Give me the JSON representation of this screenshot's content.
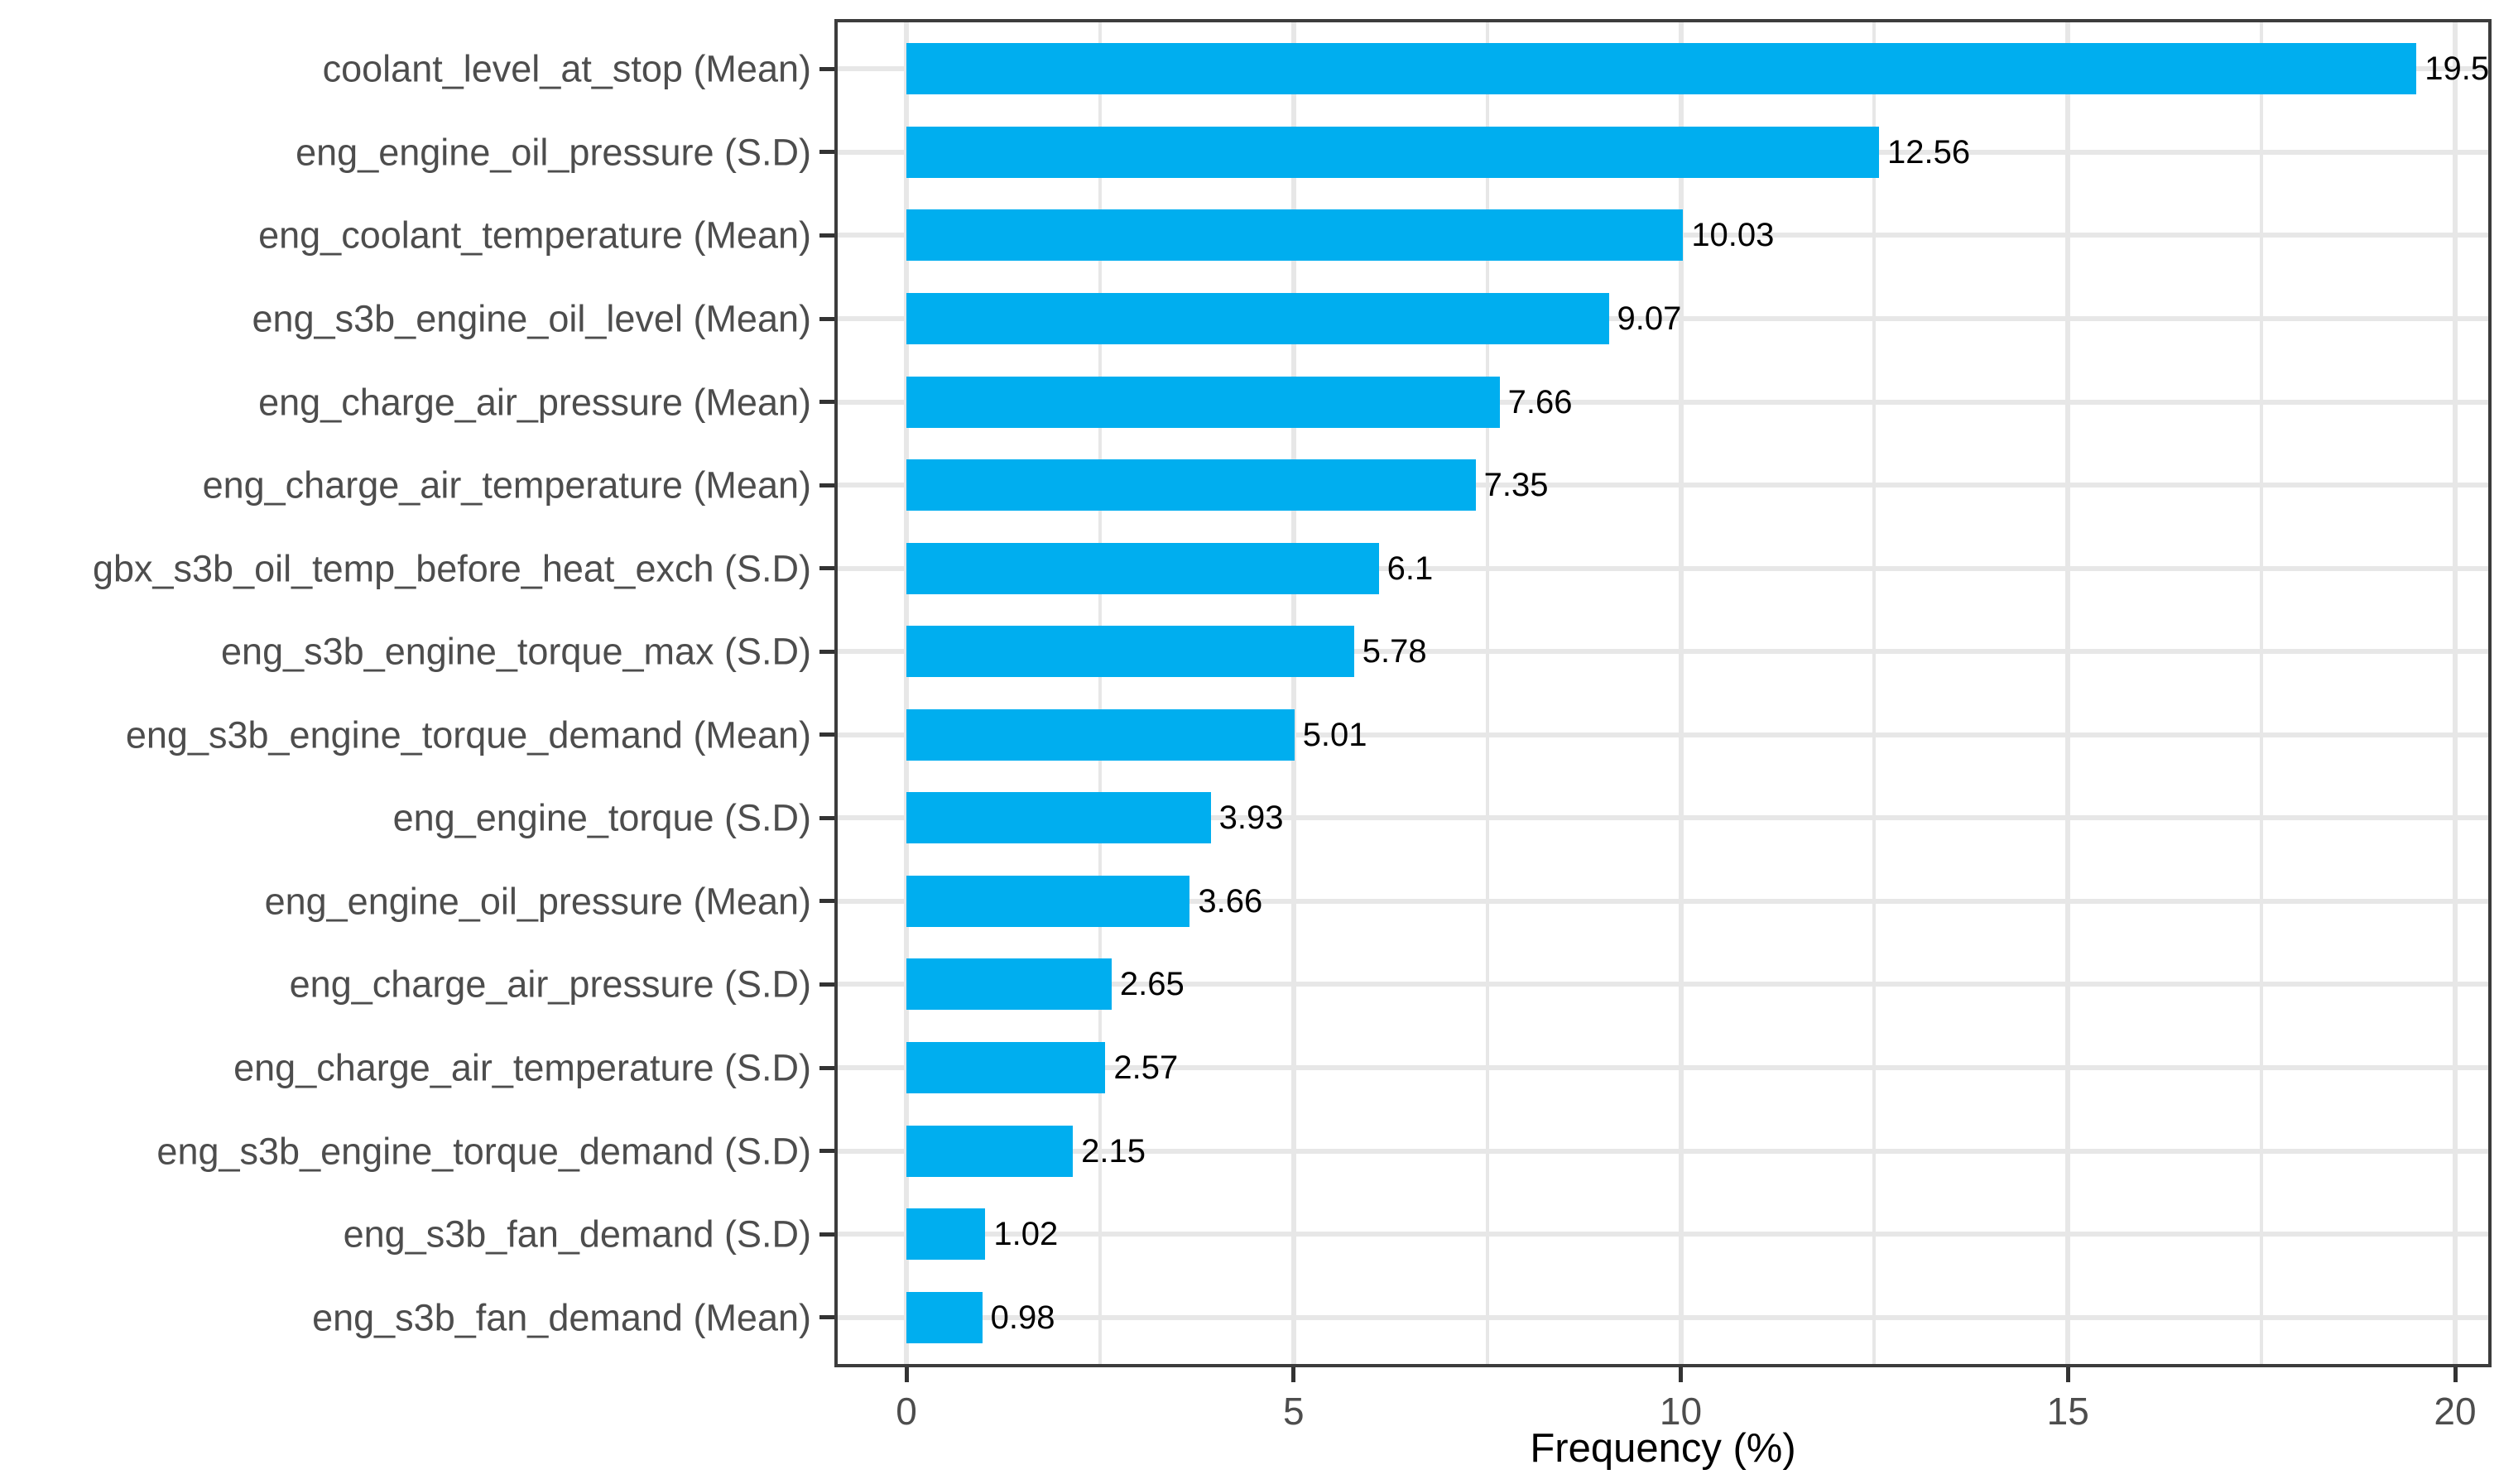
{
  "chart_data": {
    "type": "bar",
    "orientation": "horizontal",
    "xlabel": "Frequency (%)",
    "ylabel": "",
    "title": "",
    "categories": [
      "coolant_level_at_stop (Mean)",
      "eng_engine_oil_pressure (S.D)",
      "eng_coolant_temperature (Mean)",
      "eng_s3b_engine_oil_level (Mean)",
      "eng_charge_air_pressure (Mean)",
      "eng_charge_air_temperature (Mean)",
      "gbx_s3b_oil_temp_before_heat_exch (S.D)",
      "eng_s3b_engine_torque_max (S.D)",
      "eng_s3b_engine_torque_demand (Mean)",
      "eng_engine_torque (S.D)",
      "eng_engine_oil_pressure (Mean)",
      "eng_charge_air_pressure (S.D)",
      "eng_charge_air_temperature (S.D)",
      "eng_s3b_engine_torque_demand (S.D)",
      "eng_s3b_fan_demand (S.D)",
      "eng_s3b_fan_demand (Mean)"
    ],
    "values": [
      19.5,
      12.56,
      10.03,
      9.07,
      7.66,
      7.35,
      6.1,
      5.78,
      5.01,
      3.93,
      3.66,
      2.65,
      2.57,
      2.15,
      1.02,
      0.98
    ],
    "value_labels": [
      "19.5",
      "12.56",
      "10.03",
      "9.07",
      "7.66",
      "7.35",
      "6.1",
      "5.78",
      "5.01",
      "3.93",
      "3.66",
      "2.65",
      "2.57",
      "2.15",
      "1.02",
      "0.98"
    ],
    "x_ticks": [
      0,
      5,
      10,
      15,
      20
    ],
    "x_tick_labels": [
      "0",
      "5",
      "10",
      "15",
      "20"
    ],
    "x_minor_ticks": [
      2.5,
      7.5,
      12.5,
      17.5
    ],
    "xlim": [
      -0.93,
      20.47
    ],
    "grid": "on",
    "legend": "none",
    "colors": {
      "bar_fill": "#00aeef",
      "gridline": "#e7e7e7",
      "panel_border": "#3c3c3c",
      "tick_mark": "#333333",
      "axis_tick_text": "#4d4d4d",
      "value_label_text": "#000000",
      "axis_title_text": "#000000",
      "background": "#ffffff"
    }
  }
}
